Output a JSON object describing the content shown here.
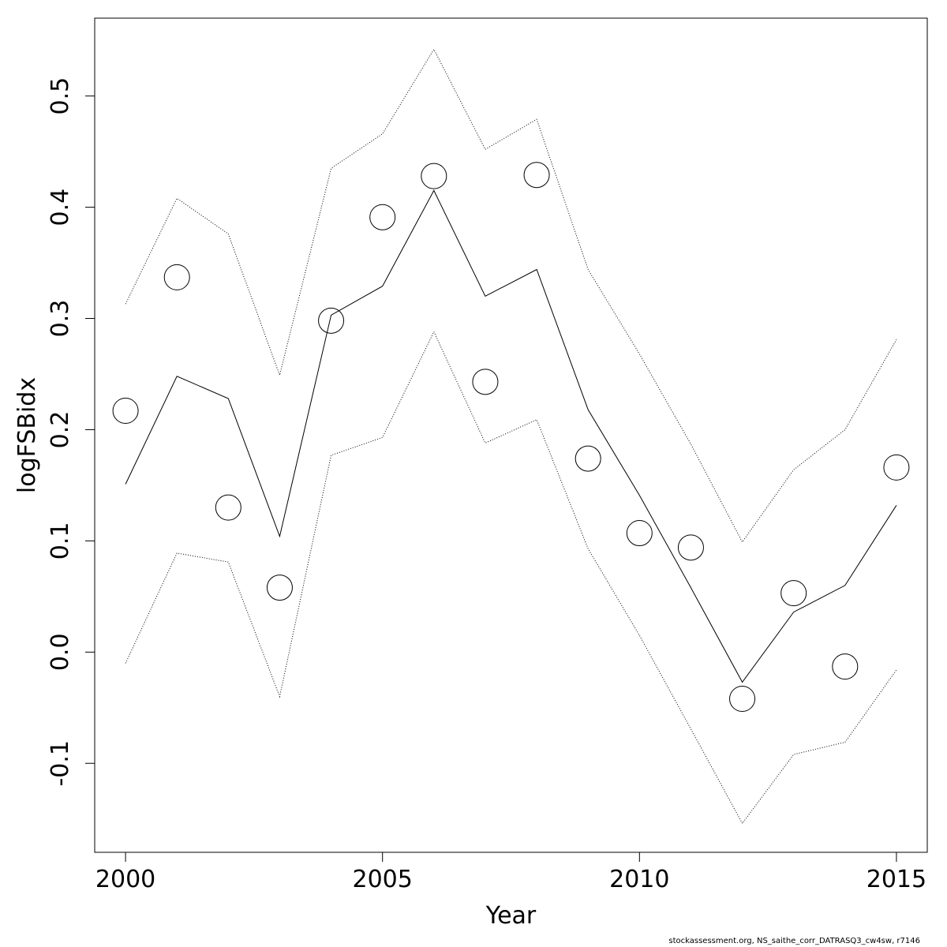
{
  "chart_data": {
    "type": "line",
    "xlabel": "Year",
    "ylabel": "logFSBidx",
    "xlim": [
      1999.4,
      2015.6
    ],
    "ylim": [
      -0.18,
      0.57
    ],
    "x_ticks": [
      2000,
      2005,
      2010,
      2015
    ],
    "y_ticks": [
      -0.1,
      0.0,
      0.1,
      0.2,
      0.3,
      0.4,
      0.5
    ],
    "y_tick_labels": [
      "-0.1",
      "0.0",
      "0.1",
      "0.2",
      "0.3",
      "0.4",
      "0.5"
    ],
    "x": [
      2000,
      2001,
      2002,
      2003,
      2004,
      2005,
      2006,
      2007,
      2008,
      2009,
      2010,
      2011,
      2012,
      2013,
      2014,
      2015
    ],
    "series": [
      {
        "style": "points",
        "values": [
          0.217,
          0.337,
          0.13,
          0.058,
          0.298,
          0.391,
          0.428,
          0.243,
          0.429,
          0.174,
          0.107,
          0.094,
          -0.042,
          0.053,
          -0.013,
          0.166
        ]
      },
      {
        "style": "solid",
        "values": [
          0.151,
          0.248,
          0.228,
          0.104,
          0.303,
          0.329,
          0.415,
          0.32,
          0.344,
          0.218,
          0.141,
          0.058,
          -0.027,
          0.036,
          0.06,
          0.132
        ]
      },
      {
        "style": "dotted",
        "values": [
          0.313,
          0.408,
          0.376,
          0.249,
          0.435,
          0.466,
          0.542,
          0.452,
          0.479,
          0.344,
          0.268,
          0.187,
          0.099,
          0.164,
          0.2,
          0.281
        ]
      },
      {
        "style": "dotted",
        "values": [
          -0.01,
          0.089,
          0.081,
          -0.04,
          0.177,
          0.193,
          0.288,
          0.188,
          0.209,
          0.093,
          0.015,
          -0.069,
          -0.154,
          -0.092,
          -0.081,
          -0.016
        ]
      }
    ],
    "grid": false,
    "legend": "none"
  },
  "footer": "stockassessment.org, NS_saithe_corr_DATRASQ3_cw4sw, r7146"
}
